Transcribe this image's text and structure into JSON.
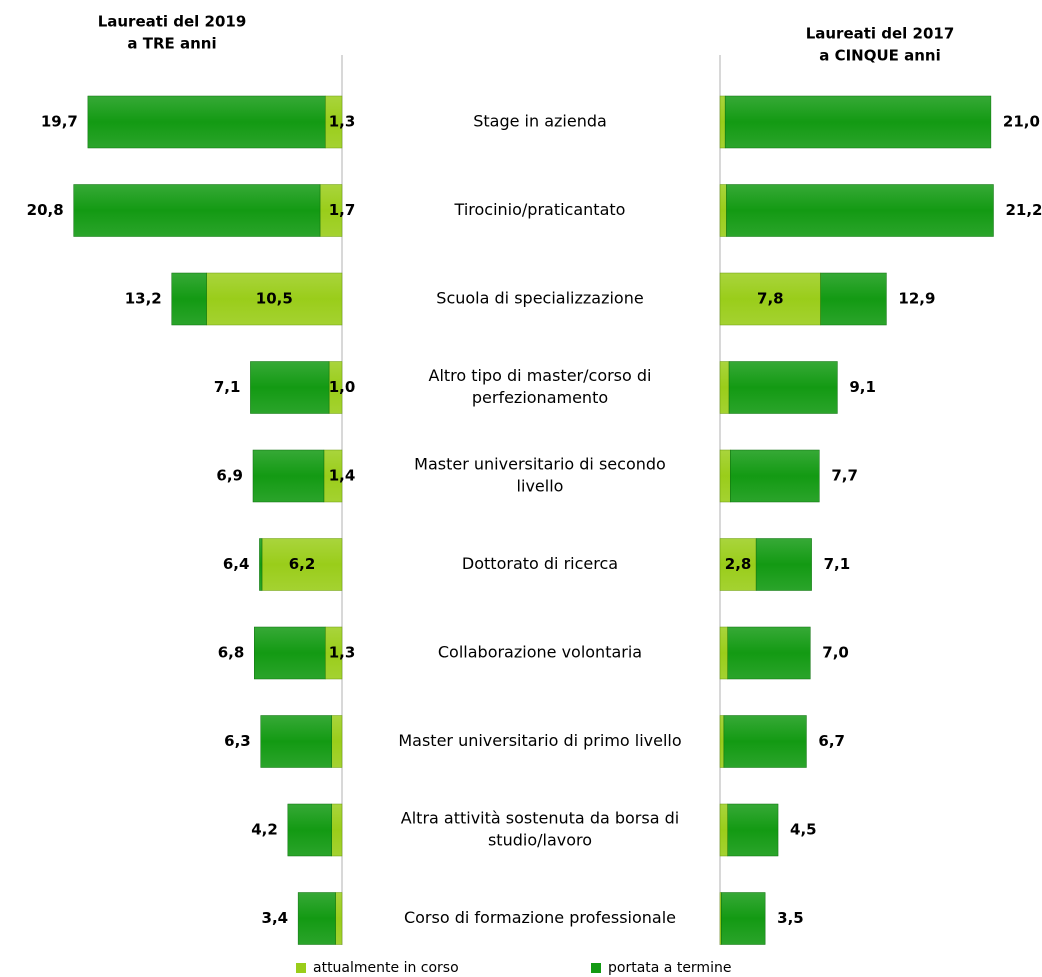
{
  "chart_data": {
    "type": "bar",
    "orientation": "horizontal",
    "layout": "butterfly",
    "colors": {
      "attualmente_in_corso": "#9acd1a",
      "portata_a_termine": "#139a13"
    },
    "legend": {
      "position": "bottom",
      "items": [
        "attualmente in corso",
        "portata a termine"
      ]
    },
    "left": {
      "title_lines": [
        "Laureati del 2019",
        "a TRE anni"
      ],
      "series": [
        {
          "name": "attualmente in corso",
          "values": [
            1.3,
            1.7,
            10.5,
            1.0,
            1.4,
            6.2,
            1.3,
            0.8,
            0.8,
            0.5
          ]
        },
        {
          "name": "portata a termine",
          "values": [
            18.4,
            19.1,
            2.7,
            6.1,
            5.5,
            0.2,
            5.5,
            5.5,
            3.4,
            2.9
          ]
        }
      ],
      "totals": [
        19.7,
        20.8,
        13.2,
        7.1,
        6.9,
        6.4,
        6.8,
        6.3,
        4.2,
        3.4
      ],
      "labels_in_corso": [
        "1,3",
        "1,7",
        "10,5",
        "1,0",
        "1,4",
        "6,2",
        "1,3",
        "",
        "",
        ""
      ],
      "labels_total": [
        "19,7",
        "20,8",
        "13,2",
        "7,1",
        "6,9",
        "6,4",
        "6,8",
        "6,3",
        "4,2",
        "3,4"
      ]
    },
    "right": {
      "title_lines": [
        "Laureati del 2017",
        "a CINQUE anni"
      ],
      "series": [
        {
          "name": "attualmente in corso",
          "values": [
            0.4,
            0.5,
            7.8,
            0.7,
            0.8,
            2.8,
            0.6,
            0.3,
            0.6,
            0.1
          ]
        },
        {
          "name": "portata a termine",
          "values": [
            20.6,
            20.7,
            5.1,
            8.4,
            6.9,
            4.3,
            6.4,
            6.4,
            3.9,
            3.4
          ]
        }
      ],
      "totals": [
        21.0,
        21.2,
        12.9,
        9.1,
        7.7,
        7.1,
        7.0,
        6.7,
        4.5,
        3.5
      ],
      "labels_in_corso": [
        "",
        "",
        "7,8",
        "",
        "",
        "2,8",
        "",
        "",
        "",
        ""
      ],
      "labels_total": [
        "21,0",
        "21,2",
        "12,9",
        "9,1",
        "7,7",
        "7,1",
        "7,0",
        "6,7",
        "4,5",
        "3,5"
      ]
    },
    "categories": [
      [
        "Stage in azienda"
      ],
      [
        "Tirocinio/praticantato"
      ],
      [
        "Scuola di specializzazione"
      ],
      [
        "Altro tipo di master/corso di",
        "perfezionamento"
      ],
      [
        "Master universitario di secondo",
        "livello"
      ],
      [
        "Dottorato di ricerca"
      ],
      [
        "Collaborazione  volontaria"
      ],
      [
        "Master universitario di primo livello"
      ],
      [
        "Altra attività sostenuta da borsa di",
        "studio/lavoro"
      ],
      [
        "Corso di formazione professionale"
      ]
    ]
  }
}
